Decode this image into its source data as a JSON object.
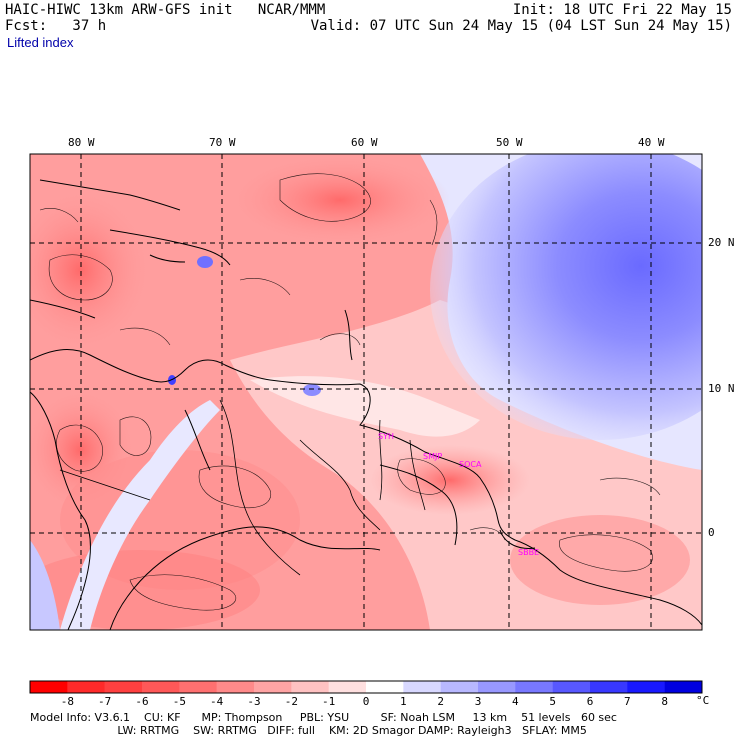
{
  "header": {
    "model_line": "HAIC-HIWC 13km ARW-GFS init   NCAR/MMM",
    "fcst_line": "Fcst:   37 h",
    "init_line": "Init: 18 UTC Fri 22 May 15",
    "valid_line": "Valid: 07 UTC Sun 24 May 15 (04 LST Sun 24 May 15)",
    "field": "Lifted index"
  },
  "axes": {
    "lon_labels": [
      "80 W",
      "70 W",
      "60 W",
      "50 W",
      "40 W"
    ],
    "lat_labels": [
      "20 N",
      "10 N",
      "0"
    ]
  },
  "stations": [
    "SYH",
    "SMJP",
    "SOCA",
    "SBBE"
  ],
  "colorbar": {
    "ticks": [
      "-8",
      "-7",
      "-6",
      "-5",
      "-4",
      "-3",
      "-2",
      "-1",
      "0",
      "1",
      "2",
      "3",
      "4",
      "5",
      "6",
      "7",
      "8"
    ],
    "unit": "°C",
    "colors": [
      "#ff0000",
      "#ff2a2a",
      "#ff4040",
      "#ff5858",
      "#ff7070",
      "#ff8a8a",
      "#ffa4a4",
      "#ffc2c2",
      "#ffe0e0",
      "#ffffff",
      "#d8d8ff",
      "#b8b8ff",
      "#9898ff",
      "#7878ff",
      "#5858ff",
      "#3838ff",
      "#1818ff",
      "#0000e0"
    ]
  },
  "model_info": {
    "line1": "Model Info: V3.6.1    CU: KF      MP: Thompson     PBL: YSU         SF: Noah LSM     13 km    51 levels   60 sec",
    "line2": "                         LW: RRTMG    SW: RRTMG   DIFF: full    KM: 2D Smagor DAMP: Rayleigh3   SFLAY: MM5"
  }
}
